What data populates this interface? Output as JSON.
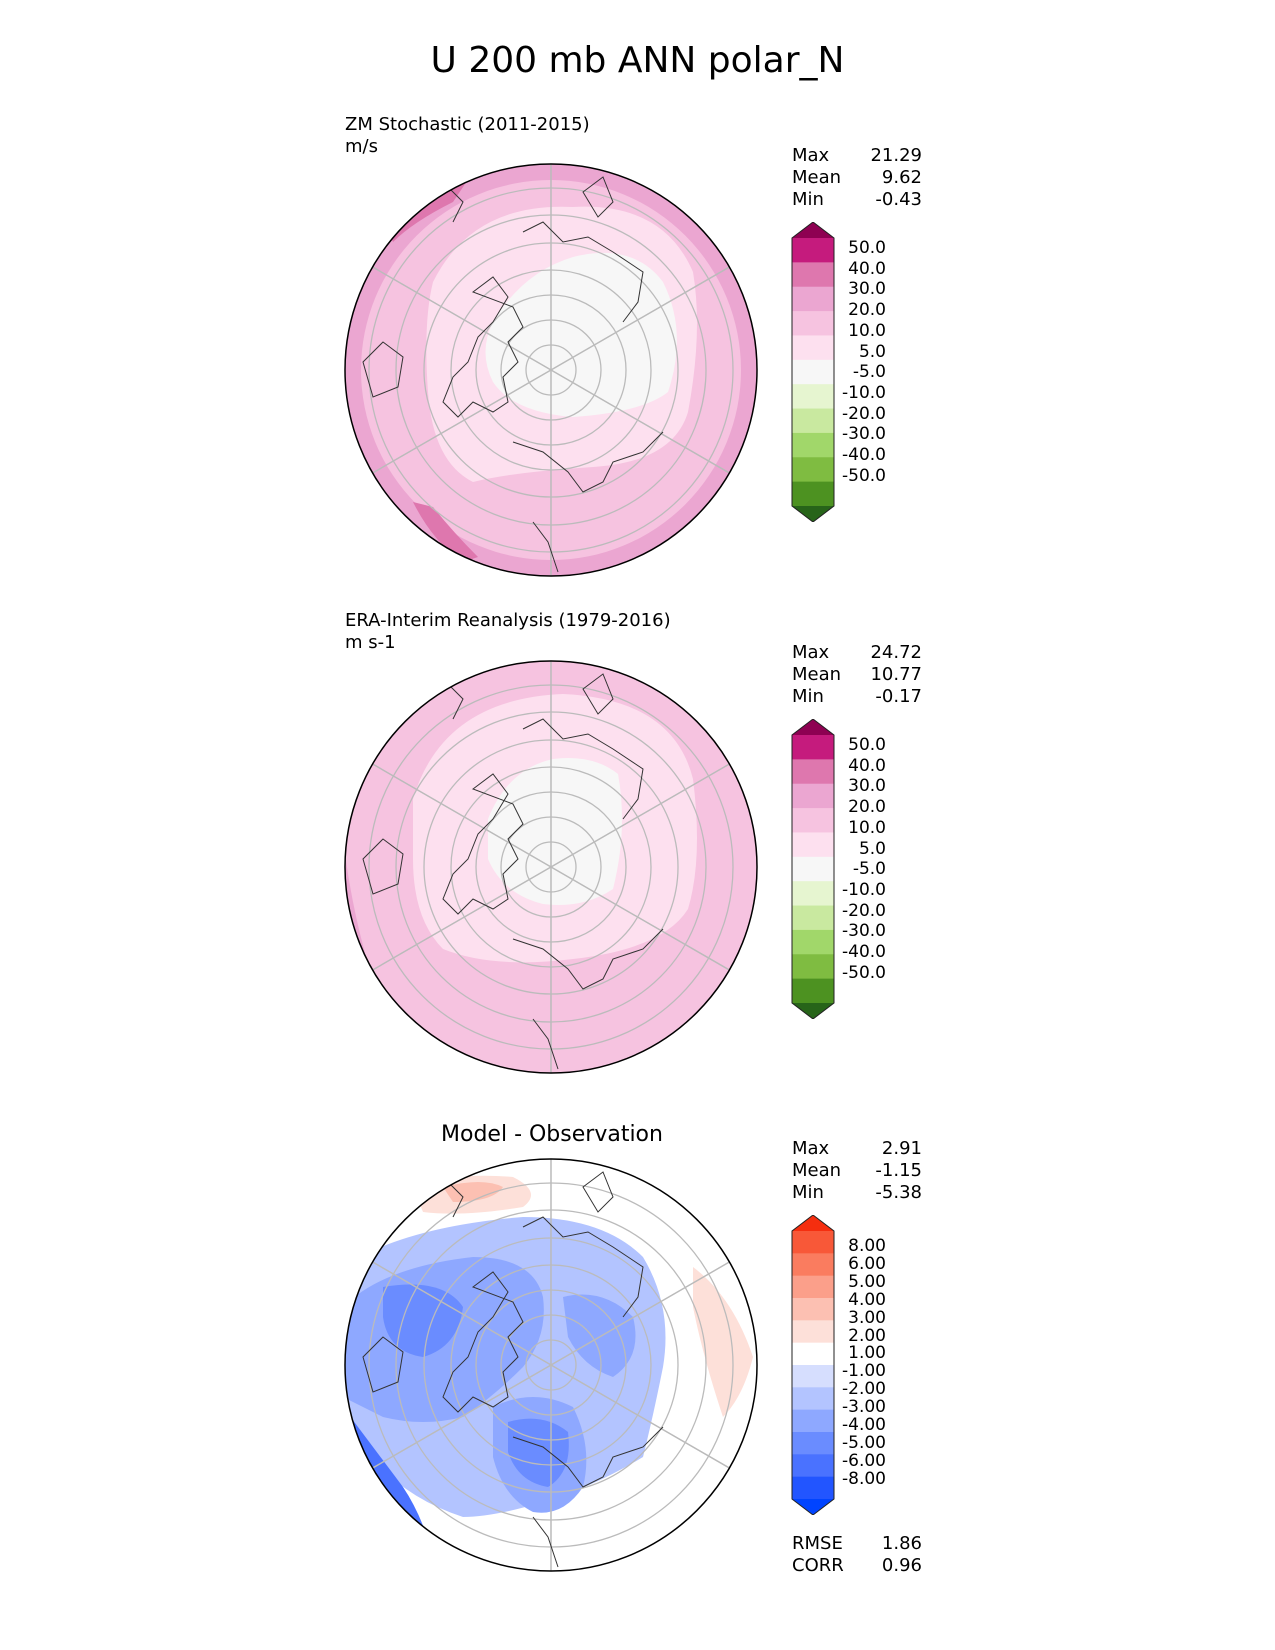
{
  "title": "U 200 mb ANN polar_N",
  "colors": {
    "piyg": [
      "#276419",
      "#4d9221",
      "#7fbc41",
      "#a1d76a",
      "#c9e9a0",
      "#e6f5d0",
      "#f7f7f7",
      "#fde0ef",
      "#f6c3e0",
      "#eba6d1",
      "#de77ae",
      "#c51b7d",
      "#8e0152"
    ],
    "diff": [
      "#0044ff",
      "#2255ff",
      "#4a72ff",
      "#6a8cff",
      "#8ea8ff",
      "#b3c4ff",
      "#d6defe",
      "#ffffff",
      "#fde0d9",
      "#fcc0b2",
      "#fb9f8a",
      "#fa7c5f",
      "#f85838",
      "#f52e0f"
    ],
    "grid": "#bbbbbb"
  },
  "panels": [
    {
      "id": "model",
      "title": "ZM Stochastic (2011-2015)",
      "units": "m/s",
      "stats": [
        {
          "label": "Max",
          "value": "21.29"
        },
        {
          "label": "Mean",
          "value": "9.62"
        },
        {
          "label": "Min",
          "value": "-0.43"
        }
      ],
      "colorbar_ticks": [
        "50.0",
        "40.0",
        "30.0",
        "20.0",
        "10.0",
        "5.0",
        "-5.0",
        "-10.0",
        "-20.0",
        "-30.0",
        "-40.0",
        "-50.0"
      ]
    },
    {
      "id": "obs",
      "title": "ERA-Interim Reanalysis (1979-2016)",
      "units": "m s-1",
      "stats": [
        {
          "label": "Max",
          "value": "24.72"
        },
        {
          "label": "Mean",
          "value": "10.77"
        },
        {
          "label": "Min",
          "value": "-0.17"
        }
      ],
      "colorbar_ticks": [
        "50.0",
        "40.0",
        "30.0",
        "20.0",
        "10.0",
        "5.0",
        "-5.0",
        "-10.0",
        "-20.0",
        "-30.0",
        "-40.0",
        "-50.0"
      ]
    },
    {
      "id": "diff",
      "title": "Model - Observation",
      "stats": [
        {
          "label": "Max",
          "value": "2.91"
        },
        {
          "label": "Mean",
          "value": "-1.15"
        },
        {
          "label": "Min",
          "value": "-5.38"
        }
      ],
      "colorbar_ticks": [
        "8.00",
        "6.00",
        "5.00",
        "4.00",
        "3.00",
        "2.00",
        "1.00",
        "-1.00",
        "-2.00",
        "-3.00",
        "-4.00",
        "-5.00",
        "-6.00",
        "-8.00"
      ],
      "metrics": [
        {
          "label": "RMSE",
          "value": "1.86"
        },
        {
          "label": "CORR",
          "value": "0.96"
        }
      ]
    }
  ],
  "chart_data": [
    {
      "type": "heatmap",
      "title": "ZM Stochastic (2011-2015)",
      "units": "m/s",
      "projection": "north polar stereographic",
      "levels": [
        -50,
        -40,
        -30,
        -20,
        -10,
        -5,
        5,
        10,
        20,
        30,
        40,
        50
      ],
      "colorbar_extend": "both",
      "stats": {
        "max": 21.29,
        "mean": 9.62,
        "min": -0.43
      },
      "dominant_ranges": [
        "-5 to 5 (pole)",
        "5 to 10",
        "10 to 20",
        "20 to 30 (edges)"
      ],
      "grid": true
    },
    {
      "type": "heatmap",
      "title": "ERA-Interim Reanalysis (1979-2016)",
      "units": "m s-1",
      "projection": "north polar stereographic",
      "levels": [
        -50,
        -40,
        -30,
        -20,
        -10,
        -5,
        5,
        10,
        20,
        30,
        40,
        50
      ],
      "colorbar_extend": "both",
      "stats": {
        "max": 24.72,
        "mean": 10.77,
        "min": -0.17
      },
      "dominant_ranges": [
        "-5 to 5 (pole)",
        "5 to 10",
        "10 to 20",
        "20 to 30 (edges)"
      ],
      "grid": true
    },
    {
      "type": "heatmap",
      "title": "Model - Observation",
      "projection": "north polar stereographic",
      "levels": [
        -8,
        -6,
        -5,
        -4,
        -3,
        -2,
        -1,
        1,
        2,
        3,
        4,
        5,
        6,
        8
      ],
      "colorbar_extend": "both",
      "stats": {
        "max": 2.91,
        "mean": -1.15,
        "min": -5.38
      },
      "metrics": {
        "rmse": 1.86,
        "corr": 0.96
      },
      "dominant_ranges": [
        "-1 to 1",
        "-3 to -1",
        "-5 to -3 (edge)",
        "1 to 3 (edges)"
      ],
      "grid": true
    }
  ]
}
